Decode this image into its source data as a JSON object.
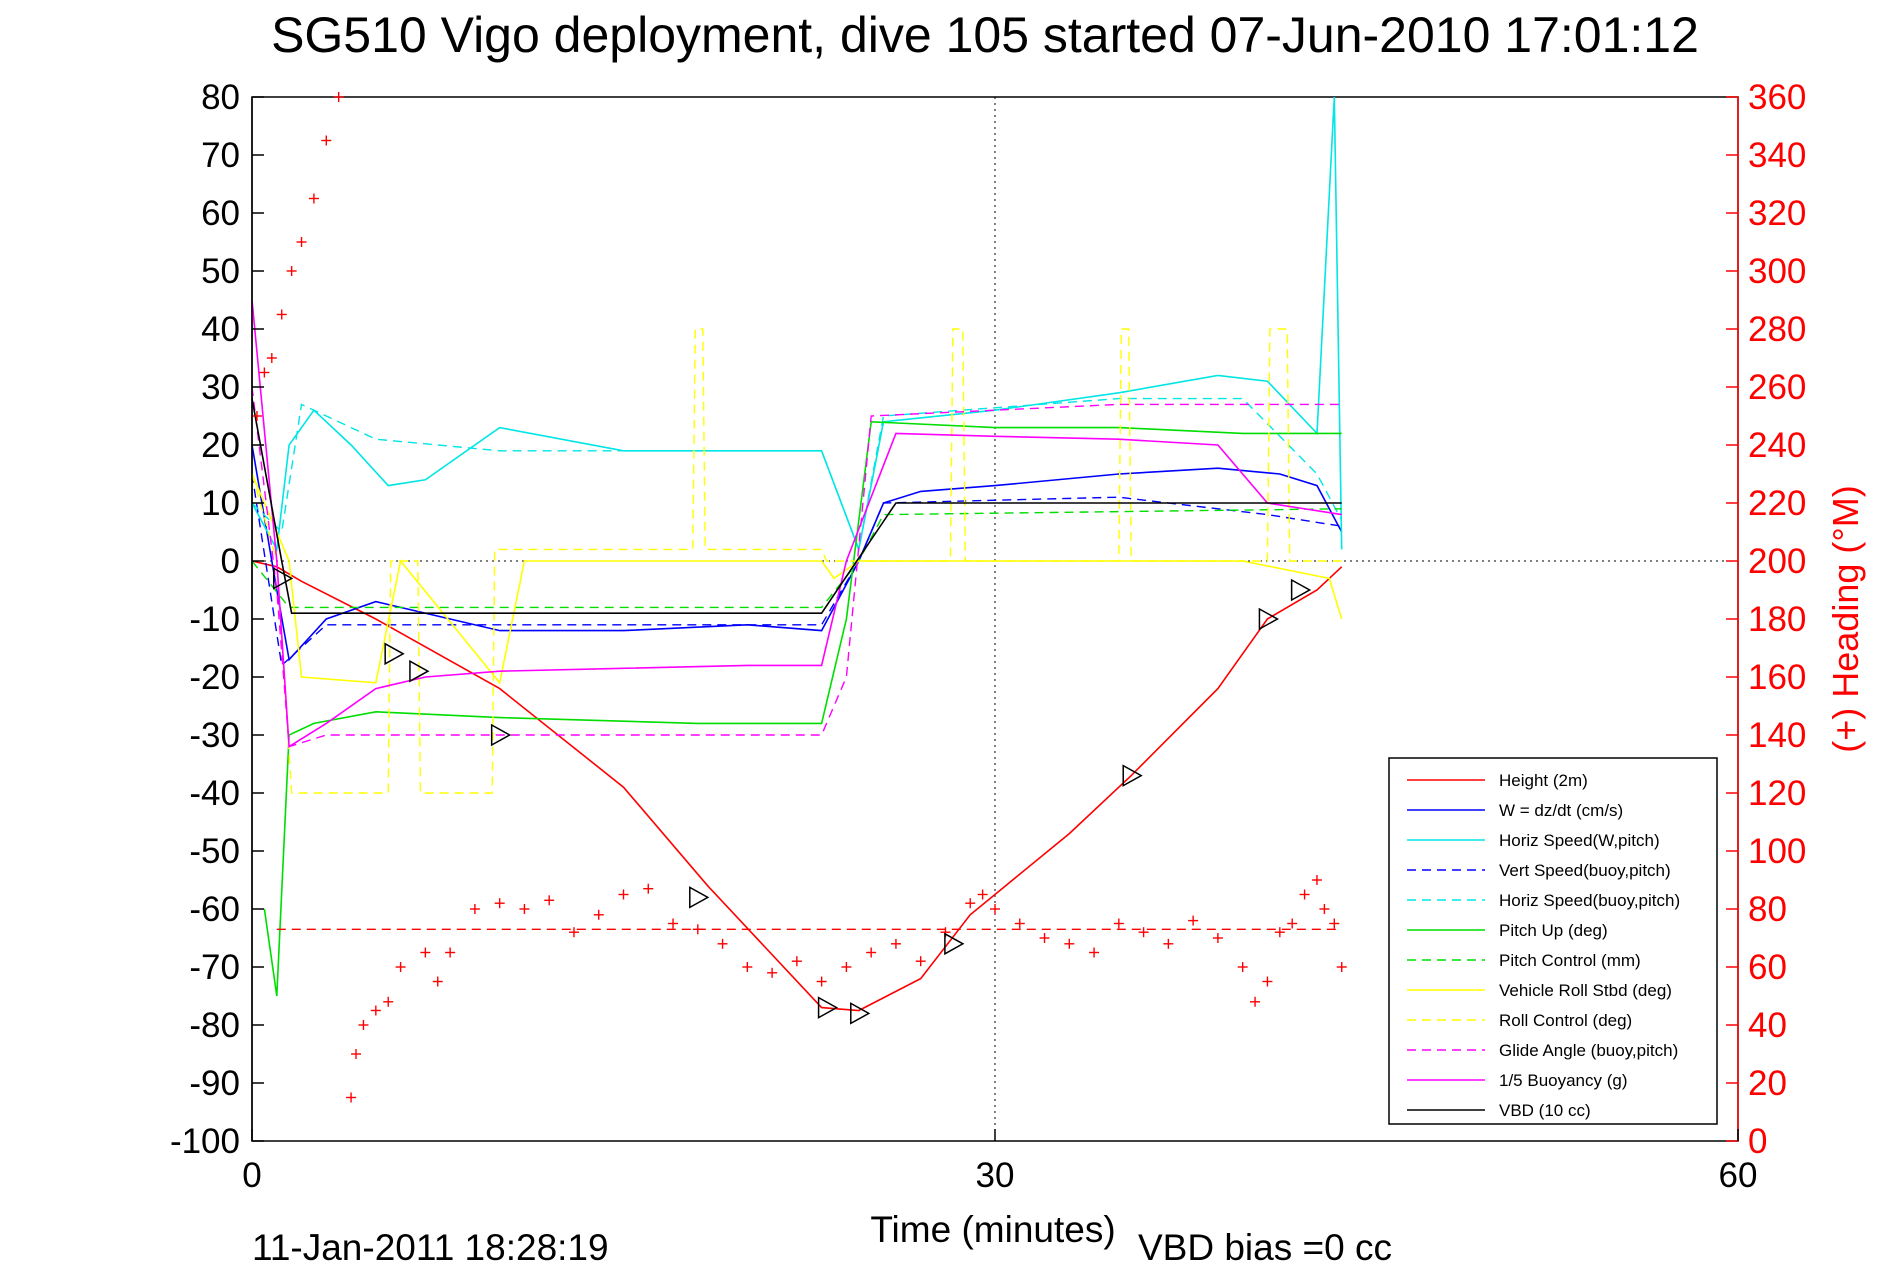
{
  "chart_data": {
    "type": "line",
    "title": "SG510 Vigo deployment, dive 105 started 07-Jun-2010 17:01:12",
    "xlabel": "Time (minutes)",
    "ylabel": "",
    "ylabel_right": "(+) Heading (°M)",
    "xlim": [
      0,
      60
    ],
    "ylim": [
      -100,
      80
    ],
    "ylim_right": [
      0,
      360
    ],
    "x_ticks": [
      "0",
      "30",
      "60"
    ],
    "y_ticks": [
      "80",
      "70",
      "60",
      "50",
      "40",
      "30",
      "20",
      "10",
      "0",
      "-10",
      "-20",
      "-30",
      "-40",
      "-50",
      "-60",
      "-70",
      "-80",
      "-90",
      "-100"
    ],
    "y_ticks_right": [
      "360",
      "340",
      "320",
      "300",
      "280",
      "260",
      "240",
      "220",
      "200",
      "180",
      "160",
      "140",
      "120",
      "100",
      "80",
      "60",
      "40",
      "20",
      "0"
    ],
    "grid": "dotted at x=30 and y=0",
    "legend_position": "bottom-right",
    "footer_left": "11-Jan-2011 18:28:19",
    "footer_right": "VBD bias =0 cc",
    "series": [
      {
        "name": "Height (2m)",
        "color": "#ff0000",
        "style": "solid",
        "x": [
          0,
          1,
          2,
          5,
          10,
          15,
          18.4,
          23,
          24.5,
          27,
          29,
          33,
          35.5,
          39,
          41,
          43,
          44
        ],
        "y": [
          0,
          -1,
          -3.5,
          -10,
          -22,
          -39,
          -56,
          -77,
          -77.5,
          -72,
          -61,
          -47,
          -37,
          -22,
          -10,
          -5,
          -1
        ]
      },
      {
        "name": "W = dz/dt (cm/s)",
        "color": "#0000ff",
        "style": "solid",
        "x": [
          0,
          1,
          1.5,
          3,
          5,
          10,
          15,
          20,
          23,
          24.5,
          25.5,
          27,
          30,
          35,
          39,
          41.5,
          43,
          44
        ],
        "y": [
          20,
          -5,
          -17,
          -10,
          -7,
          -12,
          -12,
          -11,
          -12,
          0,
          10,
          12,
          13,
          15,
          16,
          15,
          13,
          5
        ]
      },
      {
        "name": "Horiz Speed(W,pitch)",
        "color": "#00e5e5",
        "style": "solid",
        "x": [
          0,
          1,
          1.5,
          2.5,
          4,
          5.5,
          7,
          10,
          15,
          20,
          23,
          24.5,
          25.5,
          30,
          35,
          39,
          41,
          43,
          43.7,
          44
        ],
        "y": [
          10,
          2,
          20,
          26,
          20,
          13,
          14,
          23,
          19,
          19,
          19,
          2,
          24,
          26,
          29,
          32,
          31,
          22,
          80,
          2
        ]
      },
      {
        "name": "Vert Speed(buoy,pitch)",
        "color": "#0000ff",
        "style": "dashed",
        "x": [
          0,
          1.2,
          3,
          10,
          23,
          24.5,
          25.5,
          35,
          41,
          44
        ],
        "y": [
          15,
          -18,
          -11,
          -11,
          -11,
          0,
          10,
          11,
          8,
          6
        ]
      },
      {
        "name": "Horiz Speed(buoy,pitch)",
        "color": "#00e5e5",
        "style": "dashed",
        "x": [
          0,
          1.2,
          2,
          5,
          10,
          23,
          24.5,
          25.5,
          35,
          40,
          43,
          44
        ],
        "y": [
          10,
          5,
          27,
          21,
          19,
          19,
          2,
          25,
          28,
          28,
          15,
          7
        ]
      },
      {
        "name": "Pitch Up (deg)",
        "color": "#00dd00",
        "style": "solid",
        "x": [
          0.5,
          1,
          1.5,
          2.5,
          5,
          10,
          18,
          23,
          24,
          25,
          30,
          35,
          40,
          44
        ],
        "y": [
          -60,
          -75,
          -30,
          -28,
          -26,
          -27,
          -28,
          -28,
          -10,
          24,
          23,
          23,
          22,
          22
        ]
      },
      {
        "name": "Pitch Control (mm)",
        "color": "#00dd00",
        "style": "dashed",
        "x": [
          0,
          1.5,
          2,
          23,
          24.5,
          25.5,
          44
        ],
        "y": [
          0,
          -8,
          -8,
          -8,
          0,
          8,
          9
        ]
      },
      {
        "name": "Vehicle Roll Stbd (deg)",
        "color": "#ffff00",
        "style": "solid",
        "x": [
          0,
          1.5,
          2,
          5,
          6,
          10,
          11,
          23,
          23.5,
          24.5,
          30,
          35,
          40,
          43.5,
          44
        ],
        "y": [
          15,
          0,
          -20,
          -21,
          0,
          -21,
          0,
          0,
          -3,
          0,
          0,
          0,
          0,
          -3,
          -10
        ]
      },
      {
        "name": "Roll Control (deg)",
        "color": "#ffff00",
        "style": "dashed",
        "x": [
          0,
          1,
          1.6,
          5.5,
          5.6,
          6.7,
          6.8,
          9.7,
          9.8,
          17.8,
          17.9,
          18.2,
          18.3,
          23,
          23.2,
          28.2,
          28.3,
          28.7,
          28.8,
          35,
          35.1,
          35.4,
          35.5,
          41,
          41.1,
          41.8,
          41.9,
          44
        ],
        "y": [
          15,
          0,
          -40,
          -40,
          0,
          0,
          -40,
          -40,
          2,
          2,
          40,
          40,
          2,
          2,
          0,
          0,
          40,
          40,
          0,
          0,
          40,
          40,
          0,
          0,
          40,
          40,
          0,
          0
        ]
      },
      {
        "name": "Glide Angle (buoy,pitch)",
        "color": "#ff00ff",
        "style": "dashed",
        "x": [
          0,
          1,
          1.5,
          3,
          5,
          10,
          18,
          23,
          24,
          25,
          30,
          35,
          40,
          44
        ],
        "y": [
          30,
          -5,
          -32,
          -30,
          -30,
          -30,
          -30,
          -30,
          -20,
          25,
          26,
          27,
          27,
          27
        ]
      },
      {
        "name": "1/5 Buoyancy (g)",
        "color": "#ff00ff",
        "style": "solid",
        "x": [
          0,
          1,
          1.5,
          3,
          5,
          7,
          10,
          15,
          20,
          23,
          24,
          26,
          30,
          35,
          39,
          41,
          44
        ],
        "y": [
          45,
          0,
          -32,
          -28,
          -22,
          -20,
          -19,
          -18.5,
          -18,
          -18,
          0,
          22,
          21.5,
          21,
          20,
          10,
          8
        ]
      },
      {
        "name": "VBD (10 cc)",
        "color": "#000000",
        "style": "solid",
        "x": [
          0,
          1.2,
          1.6,
          23,
          26,
          44
        ],
        "y": [
          28,
          0,
          -9,
          -9,
          10,
          10
        ]
      },
      {
        "name": "Heading",
        "color": "#ff0000",
        "style": "plus-markers",
        "axis": "right",
        "x": [
          0.2,
          0.5,
          0.8,
          1.2,
          1.6,
          2,
          2.5,
          3,
          3.5,
          4,
          4.2,
          4.5,
          5,
          5.5,
          6,
          7,
          7.5,
          8,
          9,
          10,
          11,
          12,
          13,
          14,
          15,
          16,
          17,
          18,
          19,
          20,
          21,
          22,
          23,
          24,
          25,
          26,
          27,
          28,
          29,
          29.5,
          30,
          31,
          32,
          33,
          34,
          35,
          36,
          37,
          38,
          39,
          40,
          40.5,
          41,
          41.5,
          42,
          42.5,
          43,
          43.3,
          43.7,
          44
        ],
        "y": [
          250,
          265,
          270,
          285,
          300,
          310,
          325,
          345,
          360,
          15,
          30,
          40,
          45,
          48,
          60,
          65,
          55,
          65,
          80,
          82,
          80,
          83,
          72,
          78,
          85,
          87,
          75,
          73,
          68,
          60,
          58,
          62,
          55,
          60,
          65,
          68,
          62,
          72,
          82,
          85,
          80,
          75,
          70,
          68,
          65,
          75,
          72,
          68,
          76,
          70,
          60,
          48,
          55,
          72,
          75,
          85,
          90,
          80,
          75,
          60
        ]
      },
      {
        "name": "Heading reference",
        "color": "#ff0000",
        "style": "dashed",
        "axis": "right",
        "x": [
          1,
          44
        ],
        "y": [
          73,
          73
        ]
      },
      {
        "name": "Apogee markers",
        "color": "#000000",
        "style": "triangle-markers",
        "x": [
          1.2,
          5.7,
          6.7,
          10,
          18,
          23.2,
          24.5,
          28.3,
          35.5,
          41,
          42.3
        ],
        "y": [
          -3,
          -16,
          -19,
          -30,
          -58,
          -77,
          -78,
          -66,
          -37,
          -10,
          -5
        ]
      }
    ]
  },
  "legend": {
    "items": [
      {
        "label": "Height (2m)",
        "color": "#ff0000",
        "dash": "solid"
      },
      {
        "label": "W = dz/dt (cm/s)",
        "color": "#0000ff",
        "dash": "solid"
      },
      {
        "label": "Horiz Speed(W,pitch)",
        "color": "#00e5e5",
        "dash": "solid"
      },
      {
        "label": "Vert Speed(buoy,pitch)",
        "color": "#0000ff",
        "dash": "dashed"
      },
      {
        "label": "Horiz Speed(buoy,pitch)",
        "color": "#00e5e5",
        "dash": "dashed"
      },
      {
        "label": "Pitch Up (deg)",
        "color": "#00dd00",
        "dash": "solid"
      },
      {
        "label": "Pitch Control (mm)",
        "color": "#00dd00",
        "dash": "dashed"
      },
      {
        "label": "Vehicle Roll Stbd (deg)",
        "color": "#ffff00",
        "dash": "solid"
      },
      {
        "label": "Roll Control (deg)",
        "color": "#ffff00",
        "dash": "dashed"
      },
      {
        "label": "Glide Angle (buoy,pitch)",
        "color": "#ff00ff",
        "dash": "dashed"
      },
      {
        "label": "1/5 Buoyancy (g)",
        "color": "#ff00ff",
        "dash": "solid"
      },
      {
        "label": "VBD (10 cc)",
        "color": "#000000",
        "dash": "solid"
      }
    ]
  }
}
